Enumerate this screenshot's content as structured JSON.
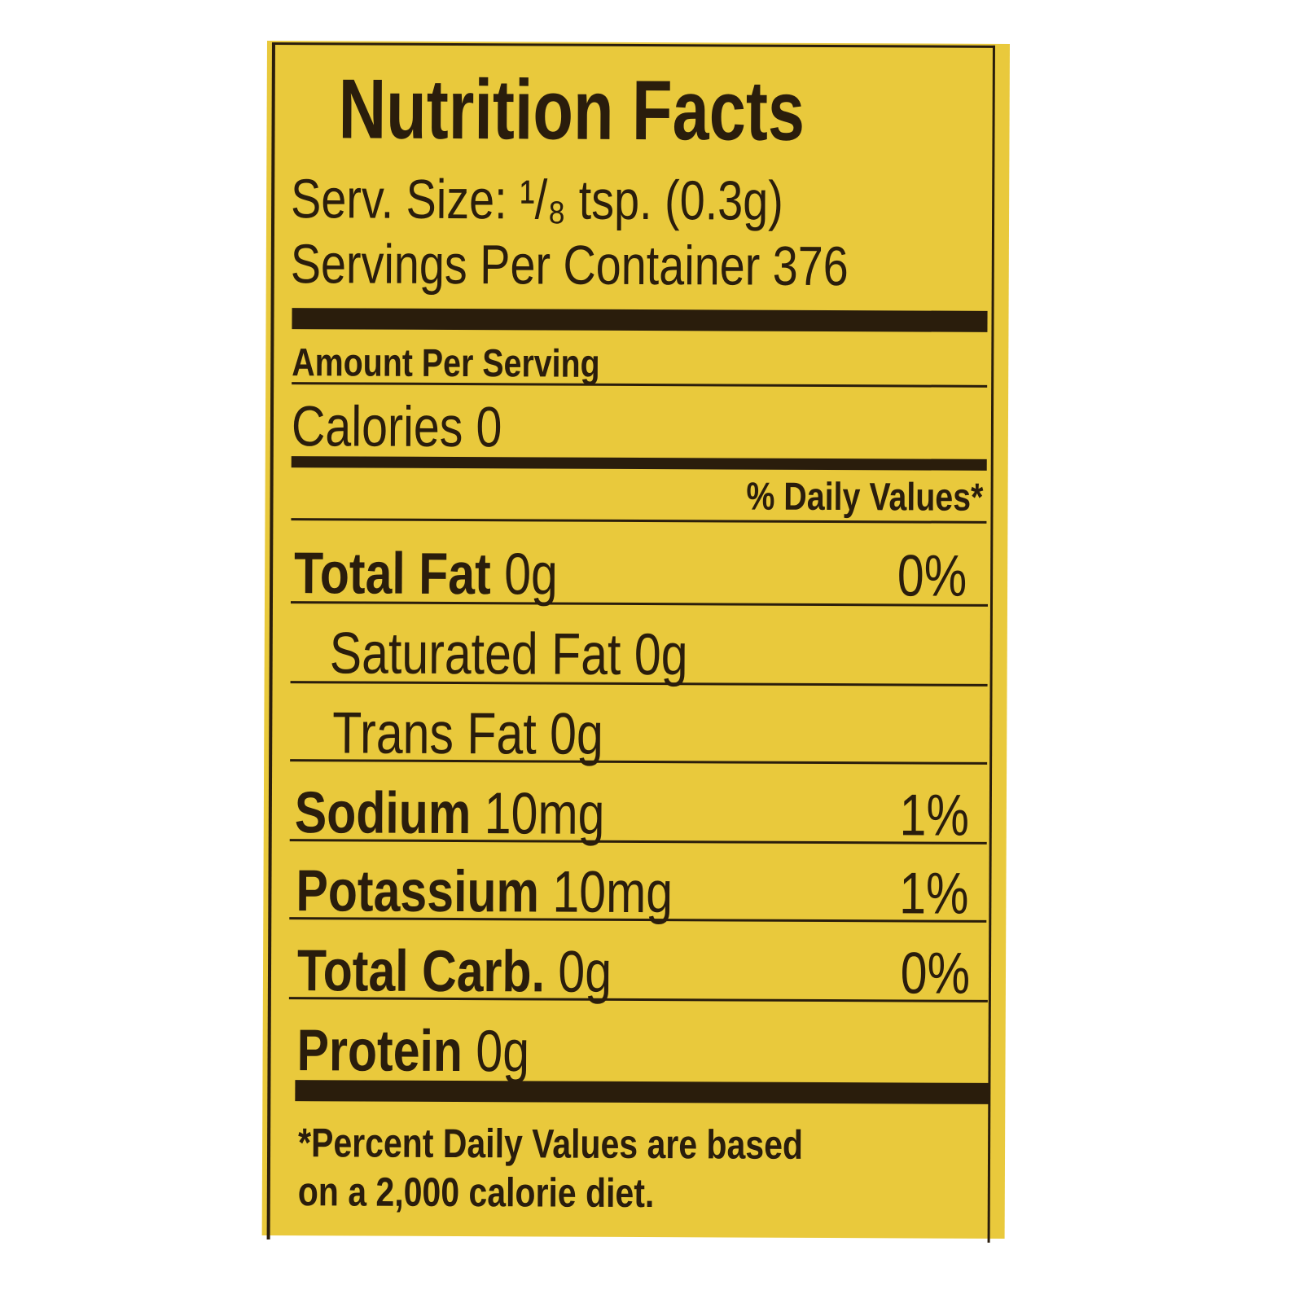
{
  "label": {
    "title": "Nutrition Facts",
    "serving_size": "Serv. Size: ¹/₈ tsp. (0.3g)",
    "servings_per_container": "Servings Per Container 376",
    "amount_per_serving": "Amount Per Serving",
    "calories": "Calories 0",
    "daily_values_header": "% Daily Values*",
    "nutrients": [
      {
        "name": "Total Fat",
        "amount": "0g",
        "dv": "0%"
      },
      {
        "name": "Saturated Fat 0g",
        "amount": "",
        "dv": ""
      },
      {
        "name": "Trans Fat 0g",
        "amount": "",
        "dv": ""
      },
      {
        "name": "Sodium",
        "amount": "10mg",
        "dv": "1%"
      },
      {
        "name": "Potassium",
        "amount": "10mg",
        "dv": "1%"
      },
      {
        "name": "Total Carb.",
        "amount": "0g",
        "dv": "0%"
      },
      {
        "name": "Protein",
        "amount": "0g",
        "dv": ""
      }
    ],
    "footnote_line1": "*Percent Daily Values are based",
    "footnote_line2": "on a 2,000 calorie diet."
  },
  "colors": {
    "background": "#e9c93c",
    "ink": "#2a1d0c"
  }
}
